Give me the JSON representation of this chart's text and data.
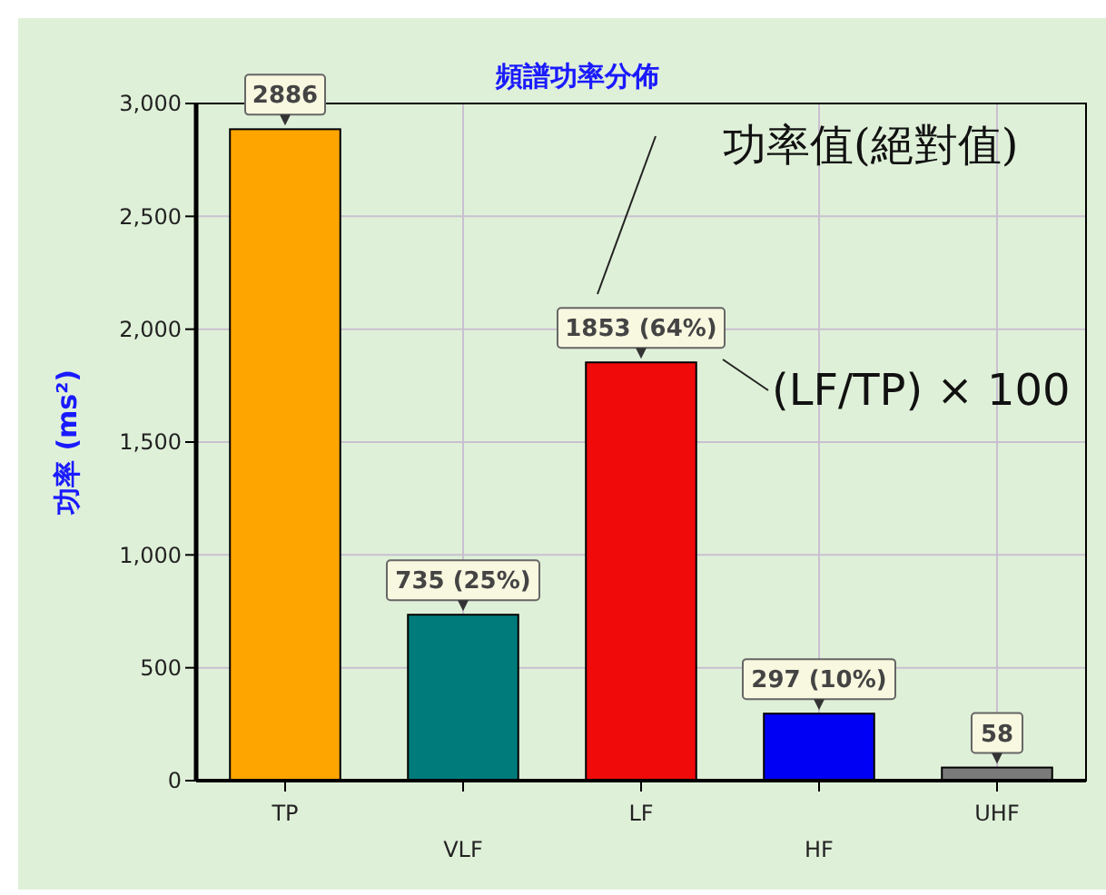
{
  "chart_data": {
    "type": "bar",
    "title": "頻譜功率分佈",
    "ylabel": "功率 (ms²)",
    "categories": [
      "TP",
      "VLF",
      "LF",
      "HF",
      "UHF"
    ],
    "values": [
      2886,
      735,
      1853,
      297,
      58
    ],
    "colors": [
      "#ffa500",
      "#007b7b",
      "#f00a0a",
      "#0000f5",
      "#7a7a7a"
    ],
    "value_labels": [
      "2886",
      "735 (25%)",
      "1853 (64%)",
      "297 (10%)",
      "58"
    ],
    "ylim": [
      0,
      3000
    ],
    "yticks": [
      {
        "value": 0,
        "label": "0"
      },
      {
        "value": 500,
        "label": "500"
      },
      {
        "value": 1000,
        "label": "1,000"
      },
      {
        "value": 1500,
        "label": "1,500"
      },
      {
        "value": 2000,
        "label": "2,000"
      },
      {
        "value": 2500,
        "label": "2,500"
      },
      {
        "value": 3000,
        "label": "3,000"
      }
    ],
    "grid": true,
    "annotations": [
      "功率值(絕對值)",
      "(LF/TP) × 100"
    ]
  }
}
